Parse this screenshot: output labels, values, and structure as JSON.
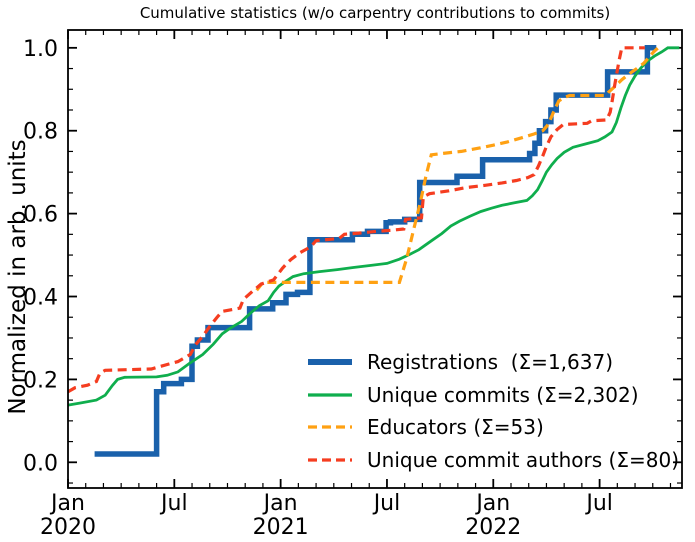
{
  "figure": {
    "title": "Cumulative statistics (w/o carpentry contributions to commits)",
    "background": "#ffffff",
    "axis_color": "#000000"
  },
  "y_axis": {
    "label": "Normalized in arb. units",
    "tick_labels": [
      "0.0",
      "0.2",
      "0.4",
      "0.6",
      "0.8",
      "1.0"
    ],
    "tick_values": [
      0.0,
      0.2,
      0.4,
      0.6,
      0.8,
      1.0
    ],
    "minor_tick_step": 0.05,
    "ylim": [
      -0.062,
      1.043
    ]
  },
  "x_axis": {
    "unit": "months since 2020-01",
    "xlim_months": [
      0,
      34.65
    ],
    "minor_tick_every_months": 1,
    "major_ticks": [
      {
        "month": 0,
        "label": "Jan",
        "year": "2020"
      },
      {
        "month": 6,
        "label": "Jul",
        "year": ""
      },
      {
        "month": 12,
        "label": "Jan",
        "year": "2021"
      },
      {
        "month": 18,
        "label": "Jul",
        "year": ""
      },
      {
        "month": 24,
        "label": "Jan",
        "year": "2022"
      },
      {
        "month": 30,
        "label": "Jul",
        "year": ""
      }
    ]
  },
  "legend": {
    "location": "lower right",
    "frame": false,
    "items": [
      {
        "name": "registrations",
        "label": "Registrations  (Σ=1,637)",
        "total": "1,637"
      },
      {
        "name": "unique-commits",
        "label": "Unique commits (Σ=2,302)",
        "total": "2,302"
      },
      {
        "name": "educators",
        "label": "Educators (Σ=53)",
        "total": "53"
      },
      {
        "name": "unique-commit-authors",
        "label": "Unique commit authors (Σ=80)",
        "total": "80"
      }
    ]
  },
  "chart_data": {
    "type": "line",
    "title": "Cumulative statistics (w/o carpentry contributions to commits)",
    "xlabel": "",
    "ylabel": "Normalized in arb. units",
    "x_unit": "months since 2020-01 (0 = Jan 2020)",
    "grid": false,
    "tick_direction": "in",
    "series": [
      {
        "name": "registrations",
        "legend_label": "Registrations  (Σ=1,637)",
        "color": "#1a61ab",
        "style": "solid",
        "width": 5.5,
        "points": [
          [
            1.5,
            0.02
          ],
          [
            5.0,
            0.02
          ],
          [
            5.0,
            0.17
          ],
          [
            5.4,
            0.17
          ],
          [
            5.4,
            0.19
          ],
          [
            6.4,
            0.19
          ],
          [
            6.4,
            0.2
          ],
          [
            7.0,
            0.2
          ],
          [
            7.0,
            0.28
          ],
          [
            7.3,
            0.28
          ],
          [
            7.3,
            0.295
          ],
          [
            7.9,
            0.295
          ],
          [
            7.9,
            0.325
          ],
          [
            10.25,
            0.325
          ],
          [
            10.25,
            0.37
          ],
          [
            11.55,
            0.37
          ],
          [
            11.55,
            0.385
          ],
          [
            12.3,
            0.385
          ],
          [
            12.3,
            0.405
          ],
          [
            12.95,
            0.405
          ],
          [
            12.95,
            0.41
          ],
          [
            13.65,
            0.41
          ],
          [
            13.65,
            0.537
          ],
          [
            16.05,
            0.537
          ],
          [
            16.05,
            0.55
          ],
          [
            16.9,
            0.55
          ],
          [
            16.9,
            0.557
          ],
          [
            17.95,
            0.557
          ],
          [
            17.95,
            0.578
          ],
          [
            18.2,
            0.578
          ],
          [
            18.2,
            0.58
          ],
          [
            19.0,
            0.58
          ],
          [
            19.0,
            0.586
          ],
          [
            19.85,
            0.586
          ],
          [
            19.85,
            0.675
          ],
          [
            21.95,
            0.675
          ],
          [
            21.95,
            0.69
          ],
          [
            23.4,
            0.69
          ],
          [
            23.4,
            0.73
          ],
          [
            26.05,
            0.73
          ],
          [
            26.05,
            0.745
          ],
          [
            26.35,
            0.745
          ],
          [
            26.35,
            0.77
          ],
          [
            26.6,
            0.77
          ],
          [
            26.6,
            0.8
          ],
          [
            26.95,
            0.8
          ],
          [
            26.95,
            0.822
          ],
          [
            27.25,
            0.822
          ],
          [
            27.25,
            0.85
          ],
          [
            27.55,
            0.85
          ],
          [
            27.55,
            0.886
          ],
          [
            30.45,
            0.886
          ],
          [
            30.45,
            0.942
          ],
          [
            32.7,
            0.942
          ],
          [
            32.7,
            1.0
          ],
          [
            33.2,
            1.0
          ]
        ]
      },
      {
        "name": "unique-commits",
        "legend_label": "Unique commits (Σ=2,302)",
        "color": "#0fae4d",
        "style": "solid",
        "width": 2.8,
        "points": [
          [
            0,
            0.138
          ],
          [
            0.7,
            0.143
          ],
          [
            1.6,
            0.15
          ],
          [
            2.1,
            0.162
          ],
          [
            2.5,
            0.185
          ],
          [
            2.8,
            0.2
          ],
          [
            3.2,
            0.205
          ],
          [
            5.0,
            0.206
          ],
          [
            5.6,
            0.21
          ],
          [
            6.2,
            0.218
          ],
          [
            6.9,
            0.24
          ],
          [
            7.6,
            0.26
          ],
          [
            8.2,
            0.285
          ],
          [
            8.7,
            0.31
          ],
          [
            9.1,
            0.322
          ],
          [
            9.8,
            0.34
          ],
          [
            10.3,
            0.36
          ],
          [
            10.8,
            0.378
          ],
          [
            11.3,
            0.39
          ],
          [
            11.6,
            0.41
          ],
          [
            11.9,
            0.425
          ],
          [
            12.3,
            0.437
          ],
          [
            12.7,
            0.448
          ],
          [
            13.3,
            0.455
          ],
          [
            14.2,
            0.46
          ],
          [
            15.2,
            0.465
          ],
          [
            16.1,
            0.47
          ],
          [
            17.1,
            0.475
          ],
          [
            18.0,
            0.48
          ],
          [
            18.7,
            0.49
          ],
          [
            19.3,
            0.502
          ],
          [
            19.8,
            0.513
          ],
          [
            20.2,
            0.525
          ],
          [
            20.6,
            0.537
          ],
          [
            21.1,
            0.552
          ],
          [
            21.6,
            0.57
          ],
          [
            22.1,
            0.582
          ],
          [
            22.7,
            0.594
          ],
          [
            23.3,
            0.605
          ],
          [
            23.9,
            0.613
          ],
          [
            24.5,
            0.62
          ],
          [
            25.2,
            0.626
          ],
          [
            25.9,
            0.632
          ],
          [
            26.2,
            0.643
          ],
          [
            26.5,
            0.658
          ],
          [
            26.75,
            0.678
          ],
          [
            27.0,
            0.7
          ],
          [
            27.3,
            0.718
          ],
          [
            27.6,
            0.733
          ],
          [
            28.0,
            0.748
          ],
          [
            28.5,
            0.76
          ],
          [
            29.2,
            0.768
          ],
          [
            29.9,
            0.776
          ],
          [
            30.3,
            0.785
          ],
          [
            30.7,
            0.797
          ],
          [
            30.95,
            0.82
          ],
          [
            31.2,
            0.855
          ],
          [
            31.45,
            0.885
          ],
          [
            31.7,
            0.91
          ],
          [
            32.0,
            0.932
          ],
          [
            32.3,
            0.95
          ],
          [
            32.7,
            0.968
          ],
          [
            33.1,
            0.98
          ],
          [
            33.5,
            0.99
          ],
          [
            33.85,
            1.0
          ],
          [
            34.5,
            1.0
          ]
        ]
      },
      {
        "name": "educators",
        "legend_label": "Educators (Σ=53)",
        "color": "#ffa113",
        "style": "dashed",
        "width": 3.2,
        "points": [
          [
            10.65,
            0.415
          ],
          [
            11.0,
            0.434
          ],
          [
            18.7,
            0.434
          ],
          [
            19.1,
            0.49
          ],
          [
            19.5,
            0.56
          ],
          [
            19.9,
            0.63
          ],
          [
            20.2,
            0.69
          ],
          [
            20.5,
            0.742
          ],
          [
            21.3,
            0.746
          ],
          [
            22.2,
            0.75
          ],
          [
            23.2,
            0.758
          ],
          [
            24.0,
            0.765
          ],
          [
            24.8,
            0.773
          ],
          [
            25.6,
            0.783
          ],
          [
            26.3,
            0.792
          ],
          [
            26.8,
            0.8
          ],
          [
            27.1,
            0.815
          ],
          [
            27.4,
            0.845
          ],
          [
            27.7,
            0.872
          ],
          [
            28.0,
            0.88
          ],
          [
            28.3,
            0.885
          ],
          [
            30.35,
            0.885
          ],
          [
            30.5,
            0.893
          ],
          [
            30.9,
            0.908
          ],
          [
            31.25,
            0.923
          ],
          [
            31.7,
            0.938
          ],
          [
            32.1,
            0.95
          ],
          [
            32.5,
            0.963
          ],
          [
            32.8,
            0.978
          ],
          [
            33.05,
            0.99
          ],
          [
            33.3,
            1.0
          ]
        ]
      },
      {
        "name": "unique-commit-authors",
        "legend_label": "Unique commit authors (Σ=80)",
        "color": "#f53d20",
        "style": "dashed",
        "width": 3.2,
        "points": [
          [
            0,
            0.17
          ],
          [
            0.4,
            0.18
          ],
          [
            1.1,
            0.186
          ],
          [
            1.6,
            0.195
          ],
          [
            1.8,
            0.215
          ],
          [
            2.1,
            0.222
          ],
          [
            4.7,
            0.225
          ],
          [
            5.1,
            0.23
          ],
          [
            5.6,
            0.236
          ],
          [
            6.2,
            0.243
          ],
          [
            6.9,
            0.26
          ],
          [
            7.2,
            0.284
          ],
          [
            7.6,
            0.304
          ],
          [
            8.0,
            0.328
          ],
          [
            8.4,
            0.349
          ],
          [
            8.7,
            0.364
          ],
          [
            9.7,
            0.372
          ],
          [
            9.9,
            0.393
          ],
          [
            10.4,
            0.412
          ],
          [
            10.9,
            0.43
          ],
          [
            11.6,
            0.44
          ],
          [
            12.1,
            0.468
          ],
          [
            12.4,
            0.482
          ],
          [
            12.6,
            0.49
          ],
          [
            13.1,
            0.506
          ],
          [
            13.7,
            0.52
          ],
          [
            14.0,
            0.535
          ],
          [
            15.3,
            0.54
          ],
          [
            15.6,
            0.55
          ],
          [
            16.4,
            0.553
          ],
          [
            17.4,
            0.557
          ],
          [
            18.3,
            0.56
          ],
          [
            18.95,
            0.563
          ],
          [
            19.05,
            0.586
          ],
          [
            19.95,
            0.59
          ],
          [
            20.05,
            0.64
          ],
          [
            20.4,
            0.648
          ],
          [
            21.5,
            0.655
          ],
          [
            22.5,
            0.663
          ],
          [
            23.5,
            0.668
          ],
          [
            24.5,
            0.674
          ],
          [
            25.3,
            0.68
          ],
          [
            25.95,
            0.687
          ],
          [
            26.3,
            0.694
          ],
          [
            26.55,
            0.715
          ],
          [
            26.8,
            0.74
          ],
          [
            27.0,
            0.762
          ],
          [
            27.25,
            0.785
          ],
          [
            27.6,
            0.803
          ],
          [
            27.95,
            0.815
          ],
          [
            29.3,
            0.818
          ],
          [
            29.55,
            0.824
          ],
          [
            30.4,
            0.826
          ],
          [
            30.6,
            0.845
          ],
          [
            30.72,
            0.875
          ],
          [
            30.85,
            0.91
          ],
          [
            31.0,
            0.945
          ],
          [
            31.1,
            0.97
          ],
          [
            31.25,
            1.0
          ],
          [
            32.55,
            1.0
          ]
        ]
      }
    ]
  }
}
